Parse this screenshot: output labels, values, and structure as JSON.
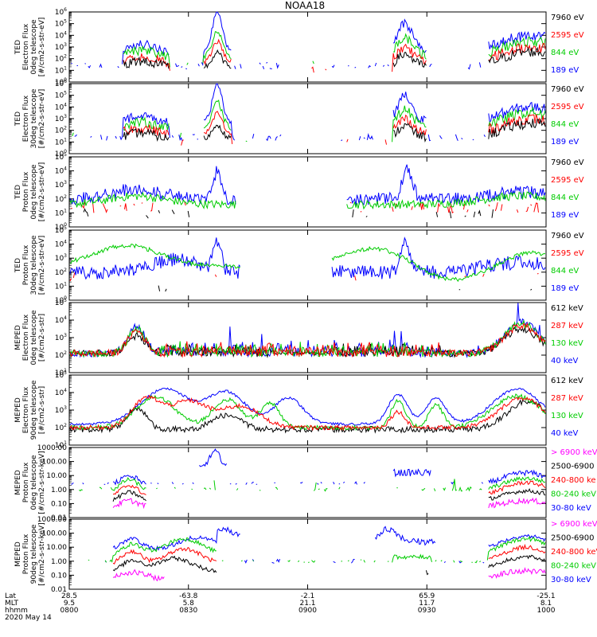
{
  "chart_data": {
    "type": "line",
    "title": "NOAA18",
    "panels": [
      {
        "ylabel": [
          "TED",
          "Electron Flux",
          "0deg telescope",
          "[#/cm2-s-str-eV]"
        ],
        "ylog": [
          0,
          6
        ],
        "legend": [
          {
            "label": "7960 eV",
            "color": "#000000"
          },
          {
            "label": "2595 eV",
            "color": "#ff0000"
          },
          {
            "label": "844 eV",
            "color": "#00cc00"
          },
          {
            "label": "189 eV",
            "color": "#0000ff"
          }
        ],
        "pattern": "ted_e0"
      },
      {
        "ylabel": [
          "TED",
          "Electron Flux",
          "30deg telescope",
          "[#/cm2-s-str-eV]"
        ],
        "ylog": [
          0,
          6
        ],
        "legend": [
          {
            "label": "7960 eV",
            "color": "#000000"
          },
          {
            "label": "2595 eV",
            "color": "#ff0000"
          },
          {
            "label": "844 eV",
            "color": "#00cc00"
          },
          {
            "label": "189 eV",
            "color": "#0000ff"
          }
        ],
        "pattern": "ted_e30"
      },
      {
        "ylabel": [
          "TED",
          "Proton Flux",
          "0deg telescope",
          "[#/cm2-s-str-eV]"
        ],
        "ylog": [
          0,
          5
        ],
        "legend": [
          {
            "label": "7960 eV",
            "color": "#000000"
          },
          {
            "label": "2595 eV",
            "color": "#ff0000"
          },
          {
            "label": "844 eV",
            "color": "#00cc00"
          },
          {
            "label": "189 eV",
            "color": "#0000ff"
          }
        ],
        "pattern": "ted_p0"
      },
      {
        "ylabel": [
          "TED",
          "Proton Flux",
          "30deg telescope",
          "[#/cm2-s-str-eV]"
        ],
        "ylog": [
          0,
          5
        ],
        "legend": [
          {
            "label": "7960 eV",
            "color": "#000000"
          },
          {
            "label": "2595 eV",
            "color": "#ff0000"
          },
          {
            "label": "844 eV",
            "color": "#00cc00"
          },
          {
            "label": "189 eV",
            "color": "#0000ff"
          }
        ],
        "pattern": "ted_p30"
      },
      {
        "ylabel": [
          "MEPED",
          "Electron Flux",
          "0deg telescope",
          "[#/cm2-s-str]"
        ],
        "ylog": [
          1,
          5
        ],
        "legend": [
          {
            "label": "612 keV",
            "color": "#000000"
          },
          {
            "label": "287 keV",
            "color": "#ff0000"
          },
          {
            "label": "130 keV",
            "color": "#00cc00"
          },
          {
            "label": "40 keV",
            "color": "#0000ff"
          }
        ],
        "pattern": "mep_e0"
      },
      {
        "ylabel": [
          "MEPED",
          "Electron Flux",
          "90deg telescope",
          "[#/cm2-s-str]"
        ],
        "ylog": [
          1,
          5
        ],
        "legend": [
          {
            "label": "612 keV",
            "color": "#000000"
          },
          {
            "label": "287 keV",
            "color": "#ff0000"
          },
          {
            "label": "130 keV",
            "color": "#00cc00"
          },
          {
            "label": "40 keV",
            "color": "#0000ff"
          }
        ],
        "pattern": "mep_e90"
      },
      {
        "ylabel": [
          "MEPED",
          "Proton Flux",
          "0deg telescope",
          "[#/cm2-s-str-keV]"
        ],
        "ylog": [
          -2,
          3
        ],
        "ticklabels": [
          "0.01",
          "0.10",
          "1.00",
          "10.00",
          "100.00",
          "1000.00"
        ],
        "legend": [
          {
            "label": "> 6900 keV",
            "color": "#ff00ff"
          },
          {
            "label": "2500-6900",
            "color": "#000000"
          },
          {
            "label": "240-800 ke",
            "color": "#ff0000"
          },
          {
            "label": "80-240 keV",
            "color": "#00cc00"
          },
          {
            "label": "30-80 keV",
            "color": "#0000ff"
          }
        ],
        "pattern": "mep_p0"
      },
      {
        "ylabel": [
          "MEPED",
          "Proton Flux",
          "90deg telescope",
          "[#/cm2-s-str-keV]"
        ],
        "ylog": [
          -2,
          3
        ],
        "ticklabels": [
          "0.01",
          "0.10",
          "1.00",
          "10.00",
          "100.00",
          "1000.00"
        ],
        "legend": [
          {
            "label": "> 6900 keV",
            "color": "#ff00ff"
          },
          {
            "label": "2500-6900",
            "color": "#000000"
          },
          {
            "label": "240-800 keV",
            "color": "#ff0000"
          },
          {
            "label": "80-240 keV",
            "color": "#00cc00"
          },
          {
            "label": "30-80 keV",
            "color": "#0000ff"
          }
        ],
        "pattern": "mep_p90"
      }
    ],
    "xaxis": {
      "row_labels": [
        "Lat",
        "MLT",
        "hhmm"
      ],
      "ticks": [
        {
          "lat": "28.5",
          "mlt": "9.5",
          "hhmm": "0800"
        },
        {
          "lat": "-63.8",
          "mlt": "5.8",
          "hhmm": "0830"
        },
        {
          "lat": "-2.1",
          "mlt": "21.1",
          "hhmm": "0900"
        },
        {
          "lat": "65.9",
          "mlt": "11.7",
          "hhmm": "0930"
        },
        {
          "lat": "-25.1",
          "mlt": "8.1",
          "hhmm": "1000"
        }
      ],
      "date": "2020 May 14"
    }
  }
}
